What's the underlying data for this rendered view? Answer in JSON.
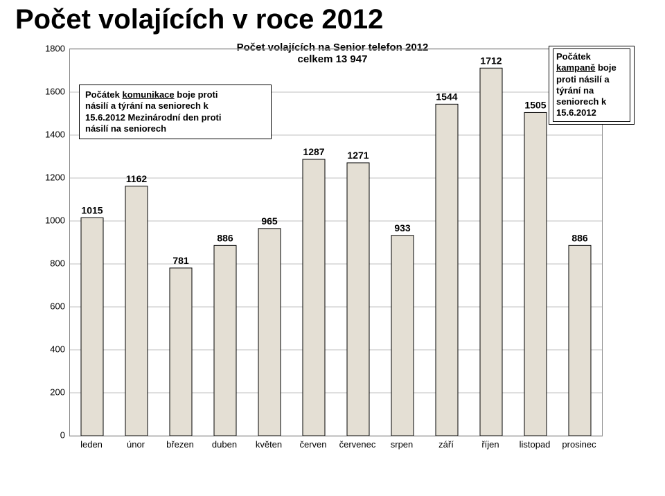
{
  "page_title": "Počet volajících v roce 2012",
  "chart": {
    "type": "bar",
    "title_line1": "Počet volajících na Senior telefon 2012",
    "title_line2": "celkem 13 947",
    "categories": [
      "leden",
      "únor",
      "březen",
      "duben",
      "květen",
      "červen",
      "červenec",
      "srpen",
      "září",
      "říjen",
      "listopad",
      "prosinec"
    ],
    "values": [
      1015,
      1162,
      781,
      886,
      965,
      1287,
      1271,
      933,
      1544,
      1712,
      1505,
      886
    ],
    "bar_color": "#e4dfd4",
    "bar_border": "#000000",
    "background_color": "#ffffff",
    "grid_color": "#bfbfbf",
    "axis_color": "#888888",
    "ylim_min": 0,
    "ylim_max": 1800,
    "ytick_step": 200,
    "bar_width_ratio": 0.5,
    "title_fontsize": 15,
    "label_fontsize": 13,
    "barlabel_fontsize": 14
  },
  "annotation_left": {
    "prefix": "Počátek ",
    "underlined": "komunikace",
    "suffix1": " boje proti",
    "line2": "násilí a týrání na seniorech k",
    "line3": "15.6.2012 Mezinárodní den proti",
    "line4": "násilí na seniorech"
  },
  "annotation_right": {
    "l1": "Počátek",
    "l2_u": "kampaně",
    "l2_rest": " boje",
    "l3": "proti násilí a",
    "l4": "týrání na",
    "l5": "seniorech k",
    "l6": "15.6.2012"
  }
}
